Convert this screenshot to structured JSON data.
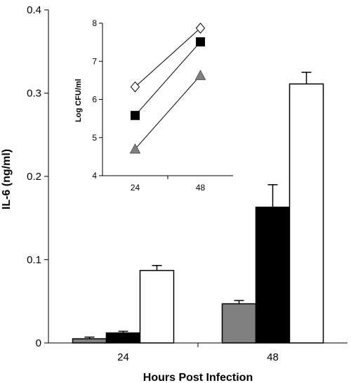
{
  "chart_data": [
    {
      "type": "bar",
      "categories": [
        "24",
        "48"
      ],
      "series": [
        {
          "values": [
            0.005,
            0.047
          ],
          "errors": [
            0.002,
            0.004
          ],
          "color": "#808080"
        },
        {
          "values": [
            0.012,
            0.163
          ],
          "errors": [
            0.002,
            0.027
          ],
          "color": "#000000"
        },
        {
          "values": [
            0.087,
            0.311
          ],
          "errors": [
            0.006,
            0.014
          ],
          "color": "#ffffff"
        }
      ],
      "xlabel": "Hours Post Infection",
      "ylabel": "IL-6 (ng/ml)",
      "ylim": [
        0,
        0.4
      ],
      "yticks": [
        "0",
        "0.1",
        "0.2",
        "0.3",
        "0.4"
      ],
      "grid": false
    },
    {
      "type": "line",
      "categories": [
        "24",
        "48"
      ],
      "series": [
        {
          "values": [
            6.33,
            7.87
          ],
          "marker": "diamond",
          "fill": "#ffffff"
        },
        {
          "values": [
            5.58,
            7.51
          ],
          "marker": "square",
          "fill": "#000000"
        },
        {
          "values": [
            4.7,
            6.63
          ],
          "marker": "triangle",
          "fill": "#808080"
        }
      ],
      "xlabel": "",
      "ylabel": "Log CFU/ml",
      "ylim": [
        4,
        8
      ],
      "yticks": [
        "4",
        "5",
        "6",
        "7",
        "8"
      ],
      "grid": false
    }
  ]
}
